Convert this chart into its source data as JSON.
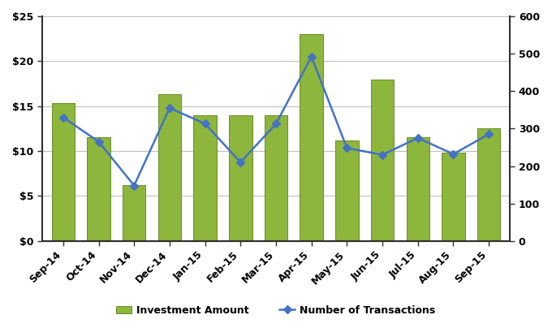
{
  "months": [
    "Sep-14",
    "Oct-14",
    "Nov-14",
    "Dec-14",
    "Jan-15",
    "Feb-15",
    "Mar-15",
    "Apr-15",
    "May-15",
    "Jun-15",
    "Jul-15",
    "Aug-15",
    "Sep-15"
  ],
  "investment": [
    15.3,
    11.5,
    6.2,
    16.3,
    14.0,
    14.0,
    14.0,
    23.0,
    11.2,
    18.0,
    11.5,
    9.8,
    12.5
  ],
  "transactions": [
    330,
    265,
    148,
    355,
    313,
    210,
    313,
    492,
    248,
    230,
    275,
    232,
    285
  ],
  "bar_color": "#8db63c",
  "bar_edge_color": "#6a8c2a",
  "line_color": "#4472c4",
  "marker_color": "#4472c4",
  "ylim_left": [
    0,
    25
  ],
  "ylim_right": [
    0,
    600
  ],
  "yticks_left": [
    0,
    5,
    10,
    15,
    20,
    25
  ],
  "ytick_labels_left": [
    "$0",
    "$5",
    "$10",
    "$15",
    "$20",
    "$25"
  ],
  "yticks_right": [
    0,
    100,
    200,
    300,
    400,
    500,
    600
  ],
  "grid_color": "#c0c0c0",
  "background_color": "#ffffff",
  "legend_investment": "Investment Amount",
  "legend_transactions": "Number of Transactions",
  "spine_color": "#2f2f2f",
  "tick_fontsize": 9,
  "legend_fontsize": 9
}
